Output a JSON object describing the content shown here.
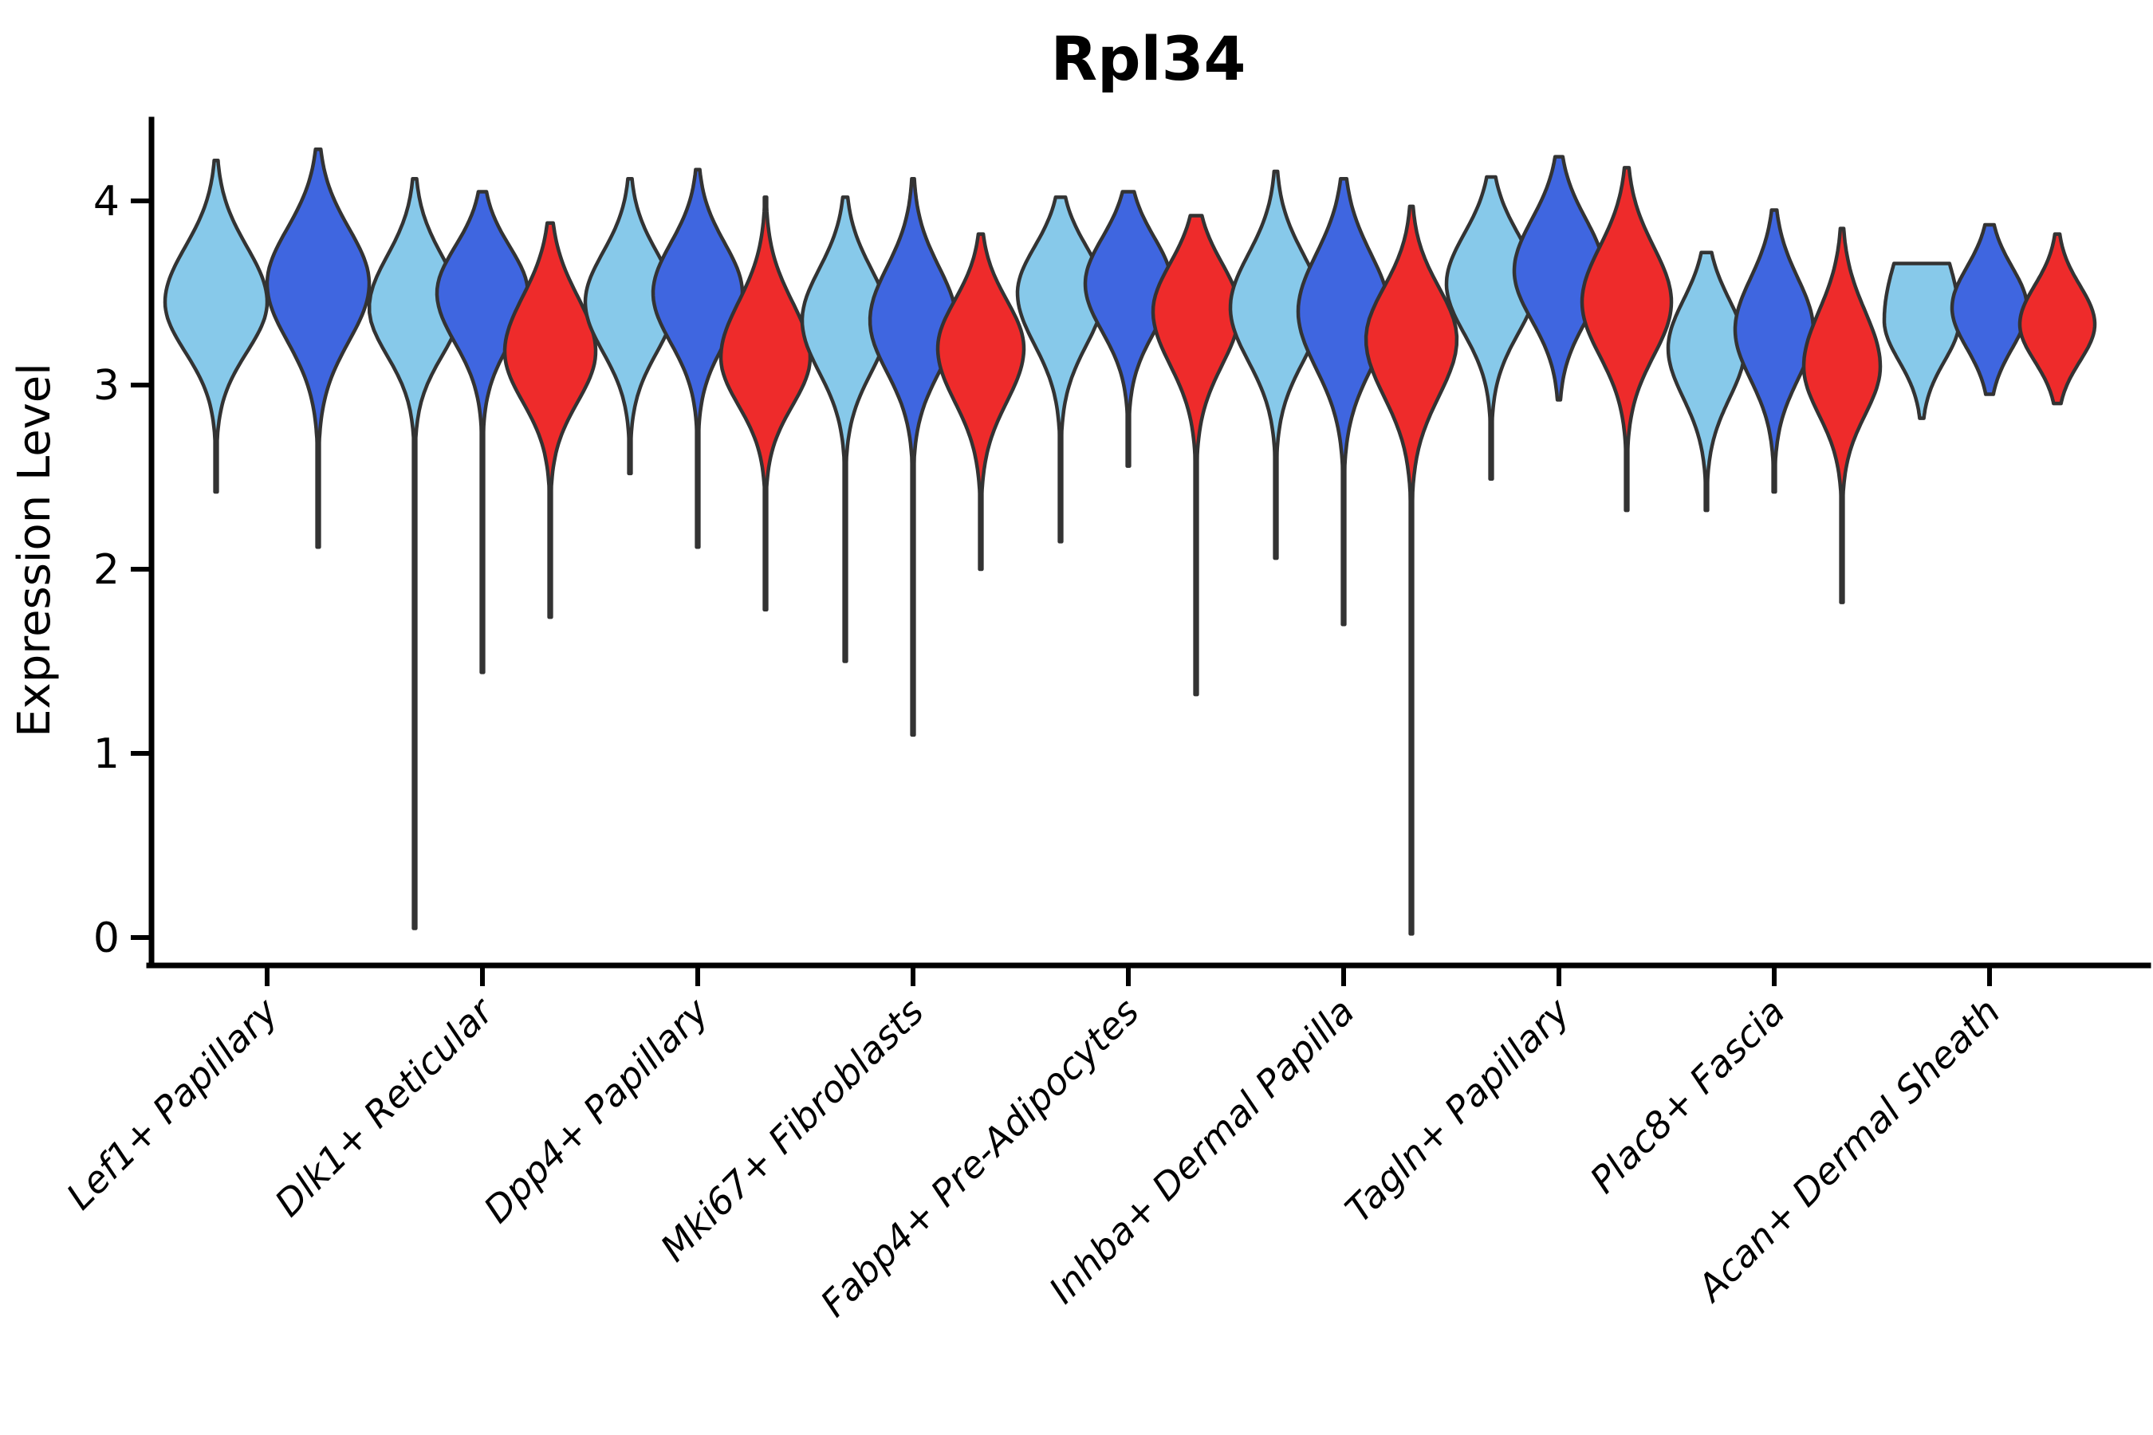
{
  "title": "Rpl34",
  "y_axis": {
    "label": "Expression Level",
    "tick_labels": [
      "0",
      "1",
      "2",
      "3",
      "4"
    ],
    "tick_values": [
      0,
      1,
      2,
      3,
      4
    ]
  },
  "x_axis": {
    "categories": [
      "Lef1+ Papillary",
      "Dlk1+ Reticular",
      "Dpp4+ Papillary",
      "Mki67+ Fibroblasts",
      "Fabp4+ Pre-Adipocytes",
      "Inhba+ Dermal Papilla",
      "Tagln+ Papillary",
      "Plac8+ Fascia",
      "Acan+ Dermal Sheath"
    ]
  },
  "colors": {
    "outline": "#333333",
    "axis": "#000000",
    "background": "#ffffff"
  },
  "chart_data": {
    "type": "violin",
    "title": "Rpl34",
    "xlabel": "",
    "ylabel": "Expression Level",
    "ylim": [
      0,
      4.45
    ],
    "yticks": [
      0,
      1,
      2,
      3,
      4
    ],
    "tick_labels": [
      "0",
      "1",
      "2",
      "3",
      "4"
    ],
    "grid": false,
    "legend": "none",
    "categories": [
      "Lef1+ Papillary",
      "Dlk1+ Reticular",
      "Dpp4+ Papillary",
      "Mki67+ Fibroblasts",
      "Fabp4+ Pre-Adipocytes",
      "Inhba+ Dermal Papilla",
      "Tagln+ Papillary",
      "Plac8+ Fascia",
      "Acan+ Dermal Sheath"
    ],
    "splits": [
      {
        "name": "lightblue",
        "color": "#87C9EA"
      },
      {
        "name": "blue",
        "color": "#3F66E0"
      },
      {
        "name": "red",
        "color": "#EE2B2B"
      }
    ],
    "violins": [
      {
        "c": 0,
        "s": 0,
        "min": 2.42,
        "max": 4.22,
        "peak": 3.45,
        "su": 0.3,
        "sl": 0.27,
        "w": 64
      },
      {
        "c": 0,
        "s": 1,
        "min": 2.12,
        "max": 4.28,
        "peak": 3.55,
        "su": 0.3,
        "sl": 0.31,
        "w": 64
      },
      {
        "c": 1,
        "s": 0,
        "min": 0.05,
        "max": 4.12,
        "peak": 3.42,
        "su": 0.28,
        "sl": 0.26,
        "w": 57
      },
      {
        "c": 1,
        "s": 1,
        "min": 1.44,
        "max": 4.05,
        "peak": 3.5,
        "su": 0.25,
        "sl": 0.27,
        "w": 57
      },
      {
        "c": 1,
        "s": 2,
        "min": 1.74,
        "max": 3.88,
        "peak": 3.18,
        "su": 0.3,
        "sl": 0.27,
        "w": 57
      },
      {
        "c": 2,
        "s": 0,
        "min": 2.52,
        "max": 4.12,
        "peak": 3.45,
        "su": 0.27,
        "sl": 0.27,
        "w": 56
      },
      {
        "c": 2,
        "s": 1,
        "min": 2.12,
        "max": 4.17,
        "peak": 3.5,
        "su": 0.27,
        "sl": 0.27,
        "w": 56
      },
      {
        "c": 2,
        "s": 2,
        "min": 1.78,
        "max": 4.02,
        "peak": 3.15,
        "su": 0.3,
        "sl": 0.26,
        "w": 56
      },
      {
        "c": 3,
        "s": 0,
        "min": 1.5,
        "max": 4.02,
        "peak": 3.35,
        "su": 0.28,
        "sl": 0.28,
        "w": 54
      },
      {
        "c": 3,
        "s": 1,
        "min": 1.1,
        "max": 4.12,
        "peak": 3.35,
        "su": 0.29,
        "sl": 0.28,
        "w": 54
      },
      {
        "c": 3,
        "s": 2,
        "min": 2.0,
        "max": 3.82,
        "peak": 3.2,
        "su": 0.26,
        "sl": 0.29,
        "w": 54
      },
      {
        "c": 4,
        "s": 0,
        "min": 2.15,
        "max": 4.02,
        "peak": 3.5,
        "su": 0.25,
        "sl": 0.28,
        "w": 54
      },
      {
        "c": 4,
        "s": 1,
        "min": 2.56,
        "max": 4.05,
        "peak": 3.55,
        "su": 0.25,
        "sl": 0.26,
        "w": 54
      },
      {
        "c": 4,
        "s": 2,
        "min": 1.32,
        "max": 3.92,
        "peak": 3.4,
        "su": 0.26,
        "sl": 0.29,
        "w": 54
      },
      {
        "c": 5,
        "s": 0,
        "min": 2.06,
        "max": 4.16,
        "peak": 3.42,
        "su": 0.29,
        "sl": 0.29,
        "w": 57
      },
      {
        "c": 5,
        "s": 1,
        "min": 1.7,
        "max": 4.12,
        "peak": 3.4,
        "su": 0.31,
        "sl": 0.31,
        "w": 57
      },
      {
        "c": 5,
        "s": 2,
        "min": 0.02,
        "max": 3.97,
        "peak": 3.25,
        "su": 0.28,
        "sl": 0.31,
        "w": 57
      },
      {
        "c": 6,
        "s": 0,
        "min": 2.49,
        "max": 4.13,
        "peak": 3.55,
        "su": 0.27,
        "sl": 0.27,
        "w": 56
      },
      {
        "c": 6,
        "s": 1,
        "min": 2.92,
        "max": 4.24,
        "peak": 3.62,
        "su": 0.28,
        "sl": 0.27,
        "w": 56
      },
      {
        "c": 6,
        "s": 2,
        "min": 2.32,
        "max": 4.18,
        "peak": 3.45,
        "su": 0.3,
        "sl": 0.29,
        "w": 56
      },
      {
        "c": 7,
        "s": 0,
        "min": 2.32,
        "max": 3.72,
        "peak": 3.2,
        "su": 0.26,
        "sl": 0.27,
        "w": 48
      },
      {
        "c": 7,
        "s": 1,
        "min": 2.42,
        "max": 3.95,
        "peak": 3.3,
        "su": 0.28,
        "sl": 0.27,
        "w": 49
      },
      {
        "c": 7,
        "s": 2,
        "min": 1.82,
        "max": 3.85,
        "peak": 3.1,
        "su": 0.3,
        "sl": 0.26,
        "w": 48
      },
      {
        "c": 8,
        "s": 0,
        "min": 2.82,
        "max": 3.66,
        "peak": 3.35,
        "su": 0.4,
        "sl": 0.22,
        "w": 47,
        "flat": true
      },
      {
        "c": 8,
        "s": 1,
        "min": 2.95,
        "max": 3.87,
        "peak": 3.42,
        "su": 0.22,
        "sl": 0.22,
        "w": 47
      },
      {
        "c": 8,
        "s": 2,
        "min": 2.9,
        "max": 3.82,
        "peak": 3.33,
        "su": 0.21,
        "sl": 0.2,
        "w": 47
      }
    ]
  }
}
